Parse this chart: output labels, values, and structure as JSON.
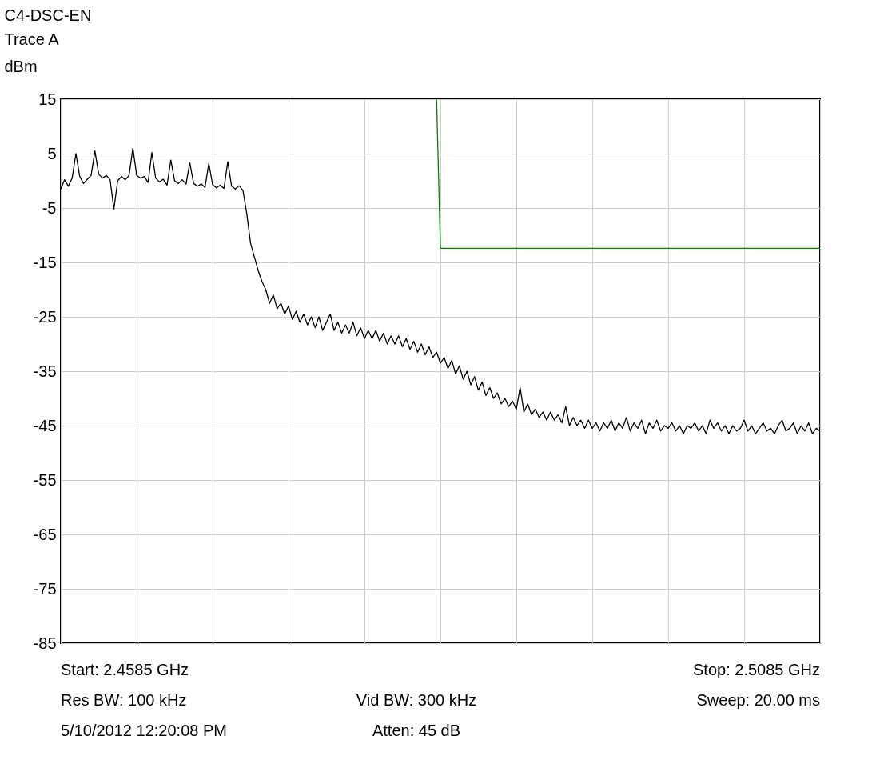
{
  "chart_data": {
    "type": "line",
    "title": "C4-DSC-EN",
    "subtitle": "Trace A",
    "ylabel": "dBm",
    "categories": [
      null,
      null,
      null,
      null,
      null,
      null,
      null,
      null,
      null,
      null,
      null,
      null,
      null,
      null,
      null,
      null,
      null,
      null,
      null,
      null,
      null,
      null,
      null,
      null,
      null,
      null,
      null,
      null,
      null,
      null,
      null,
      null,
      null,
      null,
      null,
      null,
      null,
      null,
      null,
      null,
      null,
      null,
      null,
      null,
      null,
      null,
      null,
      null,
      null,
      null,
      null,
      null,
      null,
      null,
      null,
      null,
      null,
      null,
      null,
      null,
      null,
      null,
      null,
      null,
      null,
      null,
      null,
      null,
      null,
      null,
      null,
      null,
      null,
      null,
      null,
      null,
      null,
      null,
      null,
      null,
      null,
      null,
      null,
      null,
      null,
      null,
      null,
      null,
      null,
      null,
      null,
      null,
      null,
      null,
      null,
      null,
      null,
      null,
      null,
      null,
      null,
      null,
      null,
      null,
      null,
      null,
      null,
      null,
      null,
      null,
      null,
      null,
      null,
      null,
      null,
      null,
      null,
      null,
      null,
      null,
      null,
      null,
      null,
      null,
      null,
      null,
      null,
      null,
      null,
      null,
      null,
      null,
      null,
      null,
      null,
      null,
      null,
      null,
      null,
      null,
      null,
      null,
      null,
      null,
      null,
      null,
      null,
      null,
      null,
      null,
      null,
      null,
      null,
      null,
      null,
      null,
      null,
      null,
      null,
      null,
      null,
      null,
      null,
      null,
      null,
      null,
      null,
      null,
      null,
      null,
      null,
      null,
      null,
      null,
      null,
      null,
      null,
      null,
      null,
      null,
      null,
      null,
      null,
      null,
      null,
      null,
      null,
      null,
      null,
      null,
      null,
      null,
      null,
      null,
      null,
      null,
      null,
      null,
      null,
      null,
      null
    ],
    "ylim": [
      -85,
      15
    ],
    "yticks": [
      -85,
      -75,
      -65,
      -55,
      -45,
      -35,
      -25,
      -15,
      -5,
      5,
      15
    ],
    "grid": true,
    "tick_labels": "y",
    "line_style": "solid",
    "series": [
      {
        "color": "#000000",
        "values": [
          -1.5,
          0.2,
          -1.0,
          0.5,
          5.0,
          0.8,
          -0.5,
          0.3,
          1.0,
          5.5,
          1.2,
          0.5,
          1.0,
          0.2,
          -5.2,
          0.0,
          0.8,
          0.2,
          1.0,
          6.0,
          1.0,
          0.5,
          0.8,
          -0.3,
          5.2,
          0.5,
          -0.2,
          0.3,
          -0.8,
          3.8,
          0.0,
          -0.5,
          0.2,
          -0.6,
          3.3,
          -0.5,
          -1.0,
          -0.6,
          -1.2,
          3.2,
          -0.7,
          -1.3,
          -0.8,
          -1.4,
          3.5,
          -1.0,
          -1.5,
          -0.9,
          -1.8,
          -6.0,
          -11.5,
          -14.0,
          -16.5,
          -18.5,
          -20.0,
          -22.5,
          -21.0,
          -23.5,
          -22.5,
          -24.5,
          -23.0,
          -25.5,
          -24.0,
          -26.0,
          -24.5,
          -26.5,
          -25.0,
          -27.0,
          -25.0,
          -27.5,
          -26.0,
          -24.5,
          -27.5,
          -26.0,
          -28.0,
          -26.5,
          -28.0,
          -26.0,
          -28.5,
          -27.0,
          -29.0,
          -27.5,
          -29.0,
          -27.5,
          -29.5,
          -28.0,
          -30.0,
          -28.5,
          -30.0,
          -28.5,
          -30.5,
          -29.0,
          -31.0,
          -29.5,
          -31.5,
          -30.0,
          -32.0,
          -30.5,
          -32.5,
          -31.5,
          -33.5,
          -32.5,
          -34.5,
          -33.0,
          -35.5,
          -34.0,
          -36.5,
          -35.0,
          -37.5,
          -36.0,
          -38.5,
          -37.0,
          -39.5,
          -38.0,
          -40.0,
          -39.0,
          -41.0,
          -40.0,
          -41.5,
          -40.5,
          -42.0,
          -38.0,
          -42.5,
          -41.0,
          -43.0,
          -42.0,
          -43.5,
          -42.5,
          -44.0,
          -42.5,
          -44.0,
          -43.0,
          -44.5,
          -41.5,
          -45.0,
          -43.5,
          -45.0,
          -44.0,
          -45.5,
          -44.0,
          -45.5,
          -44.5,
          -46.0,
          -44.5,
          -45.5,
          -44.0,
          -46.0,
          -44.5,
          -45.5,
          -43.5,
          -46.0,
          -44.5,
          -45.5,
          -44.0,
          -46.5,
          -44.5,
          -45.5,
          -44.0,
          -46.0,
          -45.0,
          -45.5,
          -44.5,
          -46.0,
          -45.0,
          -46.5,
          -45.0,
          -45.5,
          -44.5,
          -46.0,
          -45.0,
          -46.5,
          -44.0,
          -45.5,
          -44.5,
          -46.0,
          -45.0,
          -46.5,
          -45.0,
          -46.0,
          -45.5,
          -44.0,
          -46.0,
          -45.0,
          -46.5,
          -45.5,
          -44.5,
          -46.0,
          -45.5,
          -46.5,
          -45.0,
          -44.0,
          -46.0,
          -45.5,
          -44.5,
          -46.5,
          -45.0,
          -46.0,
          -44.5,
          -46.5,
          -45.5,
          -46.0
        ]
      },
      {
        "color": "#008000",
        "values": [
          null,
          null,
          null,
          null,
          null,
          null,
          null,
          null,
          null,
          null,
          null,
          null,
          null,
          null,
          null,
          null,
          null,
          null,
          null,
          null,
          null,
          null,
          null,
          null,
          null,
          null,
          null,
          null,
          null,
          null,
          null,
          null,
          null,
          null,
          null,
          null,
          null,
          null,
          null,
          null,
          null,
          null,
          null,
          null,
          null,
          null,
          null,
          null,
          null,
          null,
          null,
          null,
          null,
          null,
          null,
          null,
          null,
          null,
          null,
          null,
          null,
          null,
          null,
          null,
          null,
          null,
          null,
          null,
          null,
          null,
          null,
          null,
          null,
          null,
          null,
          null,
          null,
          null,
          null,
          null,
          null,
          null,
          null,
          null,
          null,
          null,
          null,
          null,
          null,
          null,
          null,
          null,
          null,
          null,
          null,
          null,
          null,
          null,
          null,
          15,
          -12.4,
          -12.4,
          -12.4,
          -12.4,
          -12.4,
          -12.4,
          -12.4,
          -12.4,
          -12.4,
          -12.4,
          -12.4,
          -12.4,
          -12.4,
          -12.4,
          -12.4,
          -12.4,
          -12.4,
          -12.4,
          -12.4,
          -12.4,
          -12.4,
          -12.4,
          -12.4,
          -12.4,
          -12.4,
          -12.4,
          -12.4,
          -12.4,
          -12.4,
          -12.4,
          -12.4,
          -12.4,
          -12.4,
          -12.4,
          -12.4,
          -12.4,
          -12.4,
          -12.4,
          -12.4,
          -12.4,
          -12.4,
          -12.4,
          -12.4,
          -12.4,
          -12.4,
          -12.4,
          -12.4,
          -12.4,
          -12.4,
          -12.4,
          -12.4,
          -12.4,
          -12.4,
          -12.4,
          -12.4,
          -12.4,
          -12.4,
          -12.4,
          -12.4,
          -12.4,
          -12.4,
          -12.4,
          -12.4,
          -12.4,
          -12.4,
          -12.4,
          -12.4,
          -12.4,
          -12.4,
          -12.4,
          -12.4,
          -12.4,
          -12.4,
          -12.4,
          -12.4,
          -12.4,
          -12.4,
          -12.4,
          -12.4,
          -12.4,
          -12.4,
          -12.4,
          -12.4,
          -12.4,
          -12.4,
          -12.4,
          -12.4,
          -12.4,
          -12.4,
          -12.4,
          -12.4,
          -12.4,
          -12.4,
          -12.4,
          -12.4,
          -12.4,
          -12.4,
          -12.4,
          -12.4,
          -12.4,
          -12.4
        ]
      }
    ],
    "annotations": [
      "Start: 2.4585 GHz",
      "Stop: 2.5085 GHz",
      "Res BW: 100 kHz",
      "Vid BW: 300 kHz",
      "Sweep: 20.00 ms",
      "5/10/2012 12:20:08 PM",
      "Atten: 45 dB"
    ]
  }
}
